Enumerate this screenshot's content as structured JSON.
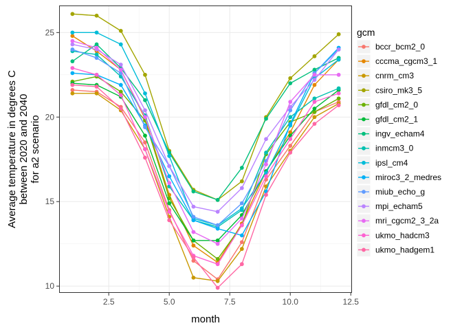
{
  "chart_data": {
    "type": "line",
    "xlabel": "month",
    "ylabel_lines": [
      "Average temperature in degrees C",
      "between 2020 and 2040",
      "for a2 scenario"
    ],
    "xlim": [
      0.45,
      12.55
    ],
    "ylim": [
      9.6,
      26.6
    ],
    "x_ticks": [
      2.5,
      5.0,
      7.5,
      10.0,
      12.5
    ],
    "x_tick_labels": [
      "2.5",
      "5.0",
      "7.5",
      "10.0",
      "12.5"
    ],
    "y_ticks": [
      10,
      15,
      20,
      25
    ],
    "y_tick_labels": [
      "10",
      "15",
      "20",
      "25"
    ],
    "grid": true,
    "legend_title": "gcm",
    "legend_position": "right",
    "x": [
      1,
      2,
      3,
      4,
      5,
      6,
      7,
      8,
      9,
      10,
      11,
      12
    ],
    "series": [
      {
        "name": "bccr_bcm2_0",
        "color": "#F8766D",
        "values": [
          21.6,
          21.5,
          20.6,
          18.5,
          14.5,
          11.5,
          10.4,
          12.6,
          16.3,
          18.3,
          20.3,
          20.9
        ]
      },
      {
        "name": "cccma_cgcm3_1",
        "color": "#E58700",
        "values": [
          24.8,
          23.9,
          22.8,
          19.9,
          15.4,
          12.4,
          11.4,
          13.7,
          16.8,
          19.1,
          21.9,
          23.4
        ]
      },
      {
        "name": "cnrm_cm3",
        "color": "#C99800",
        "values": [
          21.4,
          21.4,
          20.4,
          18.1,
          14.1,
          10.5,
          10.3,
          12.2,
          15.9,
          18.0,
          20.0,
          20.8
        ]
      },
      {
        "name": "csiro_mk3_5",
        "color": "#A3A500",
        "values": [
          26.1,
          26.0,
          25.1,
          22.5,
          18.0,
          15.7,
          15.1,
          16.2,
          20.0,
          22.3,
          23.6,
          24.9
        ]
      },
      {
        "name": "gfdl_cm2_0",
        "color": "#6BB100",
        "values": [
          22.1,
          22.4,
          21.5,
          19.8,
          15.2,
          12.7,
          11.6,
          13.6,
          17.8,
          19.7,
          20.3,
          21.1
        ]
      },
      {
        "name": "gfdl_cm2_1",
        "color": "#00BA38",
        "values": [
          22.0,
          21.9,
          21.2,
          18.9,
          14.9,
          12.7,
          12.7,
          14.2,
          16.8,
          18.9,
          20.5,
          21.6
        ]
      },
      {
        "name": "ingv_echam4",
        "color": "#00BF7D",
        "values": [
          23.3,
          24.3,
          22.9,
          21.0,
          17.9,
          15.6,
          15.1,
          17.0,
          19.9,
          22.0,
          22.8,
          23.5
        ]
      },
      {
        "name": "inmcm3_0",
        "color": "#00C0AF",
        "values": [
          23.9,
          23.7,
          22.4,
          20.1,
          15.9,
          13.9,
          13.5,
          14.5,
          17.9,
          20.0,
          21.1,
          21.7
        ]
      },
      {
        "name": "ipsl_cm4",
        "color": "#00BCD8",
        "values": [
          25.0,
          25.0,
          24.3,
          21.4,
          17.7,
          14.0,
          13.6,
          14.6,
          16.7,
          19.5,
          22.3,
          23.4
        ]
      },
      {
        "name": "miroc3_2_medres",
        "color": "#00B0F6",
        "values": [
          22.6,
          22.5,
          21.9,
          19.5,
          16.5,
          13.9,
          13.4,
          13.0,
          15.6,
          19.6,
          22.6,
          24.1
        ]
      },
      {
        "name": "miub_echo_g",
        "color": "#619CFF",
        "values": [
          24.0,
          23.5,
          22.6,
          19.4,
          17.1,
          14.1,
          13.6,
          14.9,
          17.4,
          20.4,
          22.6,
          24.0
        ]
      },
      {
        "name": "mpi_echam5",
        "color": "#B983FF",
        "values": [
          24.3,
          24.0,
          23.1,
          20.4,
          17.1,
          14.7,
          14.4,
          15.8,
          18.7,
          20.6,
          22.2,
          24.0
        ]
      },
      {
        "name": "mri_cgcm2_3_2a",
        "color": "#E76BF3",
        "values": [
          24.5,
          24.1,
          22.8,
          20.0,
          16.1,
          13.2,
          12.5,
          14.0,
          17.2,
          20.9,
          22.5,
          22.5
        ]
      },
      {
        "name": "ukmo_hadcm3",
        "color": "#FD61D1",
        "values": [
          22.9,
          22.5,
          21.3,
          18.1,
          14.4,
          11.8,
          11.3,
          13.6,
          16.5,
          18.7,
          20.9,
          21.4
        ]
      },
      {
        "name": "ukmo_hadgem1",
        "color": "#FF67A4",
        "values": [
          21.9,
          21.8,
          20.5,
          17.6,
          13.9,
          11.7,
          9.9,
          11.3,
          15.4,
          17.9,
          19.6,
          20.7
        ]
      }
    ]
  }
}
